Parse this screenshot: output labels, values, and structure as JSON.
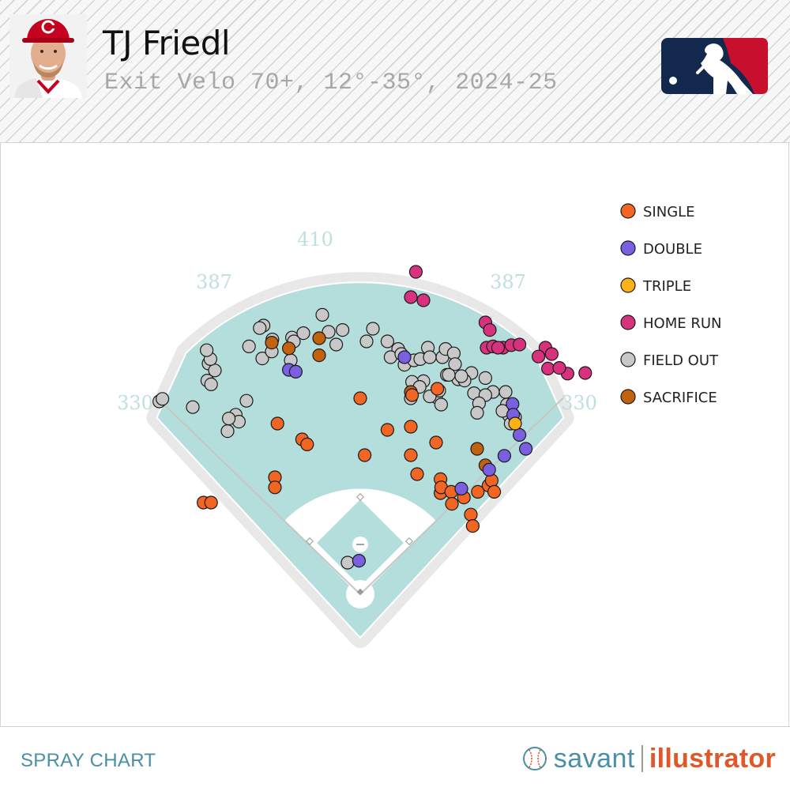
{
  "header": {
    "player_name": "TJ Friedl",
    "subtitle": "Exit Velo 70+, 12°-35°, 2024-25"
  },
  "footer": {
    "label": "SPRAY CHART",
    "brand_left": "savant",
    "brand_right": "illustrator"
  },
  "chart_data": {
    "type": "scatter",
    "x_units": "feet from home plate (negative = left field)",
    "y_units": "feet from home plate toward center field",
    "fence_distances": [
      {
        "label": "330"
      },
      {
        "label": "387"
      },
      {
        "label": "410"
      },
      {
        "label": "387"
      },
      {
        "label": "330"
      }
    ],
    "legend": [
      {
        "key": "single",
        "label": "SINGLE",
        "color": "#f26522"
      },
      {
        "key": "double",
        "label": "DOUBLE",
        "color": "#7a5fe0"
      },
      {
        "key": "triple",
        "label": "TRIPLE",
        "color": "#fbb117"
      },
      {
        "key": "home_run",
        "label": "HOME RUN",
        "color": "#d8327e"
      },
      {
        "key": "field_out",
        "label": "FIELD OUT",
        "color": "#c8c8c8"
      },
      {
        "key": "sacrifice",
        "label": "SACRIFICE",
        "color": "#c2610e"
      }
    ],
    "series": [
      {
        "key": "single",
        "points": [
          [
            -248,
            145
          ],
          [
            -236,
            145
          ],
          [
            -135,
            185
          ],
          [
            -135,
            169
          ],
          [
            -131,
            270
          ],
          [
            -92,
            245
          ],
          [
            -84,
            237
          ],
          [
            0,
            310
          ],
          [
            7,
            220
          ],
          [
            43,
            260
          ],
          [
            80,
            220
          ],
          [
            80,
            265
          ],
          [
            82,
            315
          ],
          [
            90,
            190
          ],
          [
            122,
            325
          ],
          [
            120,
            240
          ],
          [
            127,
            182
          ],
          [
            127,
            160
          ],
          [
            128,
            169
          ],
          [
            144,
            162
          ],
          [
            145,
            143
          ],
          [
            164,
            153
          ],
          [
            175,
            126
          ],
          [
            178,
            108
          ],
          [
            186,
            162
          ],
          [
            203,
            172
          ],
          [
            208,
            180
          ],
          [
            212,
            162
          ]
        ]
      },
      {
        "key": "double",
        "points": [
          [
            -113,
            355
          ],
          [
            -102,
            352
          ],
          [
            -2,
            53
          ],
          [
            70,
            375
          ],
          [
            160,
            167
          ],
          [
            204,
            197
          ],
          [
            228,
            219
          ],
          [
            241,
            301
          ],
          [
            242,
            284
          ],
          [
            252,
            252
          ],
          [
            262,
            230
          ]
        ]
      },
      {
        "key": "triple",
        "points": [
          [
            245,
            270
          ]
        ]
      },
      {
        "key": "home_run",
        "points": [
          [
            88,
            510
          ],
          [
            80,
            470
          ],
          [
            100,
            465
          ],
          [
            198,
            430
          ],
          [
            205,
            418
          ],
          [
            200,
            390
          ],
          [
            210,
            392
          ],
          [
            226,
            390
          ],
          [
            239,
            394
          ],
          [
            218,
            390
          ],
          [
            252,
            395
          ],
          [
            293,
            390
          ],
          [
            282,
            376
          ],
          [
            303,
            380
          ],
          [
            328,
            349
          ],
          [
            297,
            357
          ],
          [
            315,
            358
          ],
          [
            356,
            350
          ]
        ]
      },
      {
        "key": "field_out",
        "points": [
          [
            -318,
            305
          ],
          [
            -313,
            309
          ],
          [
            -265,
            296
          ],
          [
            -242,
            338
          ],
          [
            -236,
            332
          ],
          [
            -240,
            365
          ],
          [
            -230,
            354
          ],
          [
            -237,
            372
          ],
          [
            -243,
            386
          ],
          [
            -210,
            258
          ],
          [
            -200,
            279
          ],
          [
            -197,
            284
          ],
          [
            -192,
            273
          ],
          [
            -208,
            278
          ],
          [
            -180,
            306
          ],
          [
            -153,
            425
          ],
          [
            -159,
            421
          ],
          [
            -176,
            392
          ],
          [
            -155,
            373
          ],
          [
            -139,
            403
          ],
          [
            -140,
            384
          ],
          [
            -108,
            406
          ],
          [
            -110,
            370
          ],
          [
            -105,
            400
          ],
          [
            -90,
            413
          ],
          [
            -60,
            442
          ],
          [
            -50,
            415
          ],
          [
            -38,
            395
          ],
          [
            -28,
            418
          ],
          [
            20,
            420
          ],
          [
            10,
            400
          ],
          [
            43,
            400
          ],
          [
            60,
            388
          ],
          [
            48,
            375
          ],
          [
            65,
            380
          ],
          [
            70,
            363
          ],
          [
            85,
            370
          ],
          [
            107,
            390
          ],
          [
            95,
            372
          ],
          [
            110,
            375
          ],
          [
            130,
            375
          ],
          [
            135,
            388
          ],
          [
            148,
            381
          ],
          [
            150,
            364
          ],
          [
            137,
            347
          ],
          [
            100,
            337
          ],
          [
            80,
            310
          ],
          [
            82,
            336
          ],
          [
            94,
            328
          ],
          [
            120,
            312
          ],
          [
            125,
            322
          ],
          [
            155,
            340
          ],
          [
            180,
            318
          ],
          [
            198,
            342
          ],
          [
            210,
            320
          ],
          [
            235,
            283
          ],
          [
            238,
            270
          ],
          [
            232,
            300
          ],
          [
            230,
            320
          ],
          [
            245,
            280
          ],
          [
            198,
            315
          ],
          [
            188,
            302
          ],
          [
            185,
            287
          ],
          [
            225,
            290
          ],
          [
            176,
            350
          ],
          [
            165,
            338
          ],
          [
            160,
            345
          ],
          [
            140,
            347
          ],
          [
            128,
            300
          ],
          [
            110,
            313
          ],
          [
            -20,
            50
          ]
        ]
      },
      {
        "key": "sacrifice",
        "points": [
          [
            -140,
            398
          ],
          [
            -65,
            378
          ],
          [
            -65,
            405
          ],
          [
            -113,
            389
          ],
          [
            80,
            320
          ],
          [
            185,
            230
          ],
          [
            198,
            204
          ]
        ]
      }
    ]
  }
}
